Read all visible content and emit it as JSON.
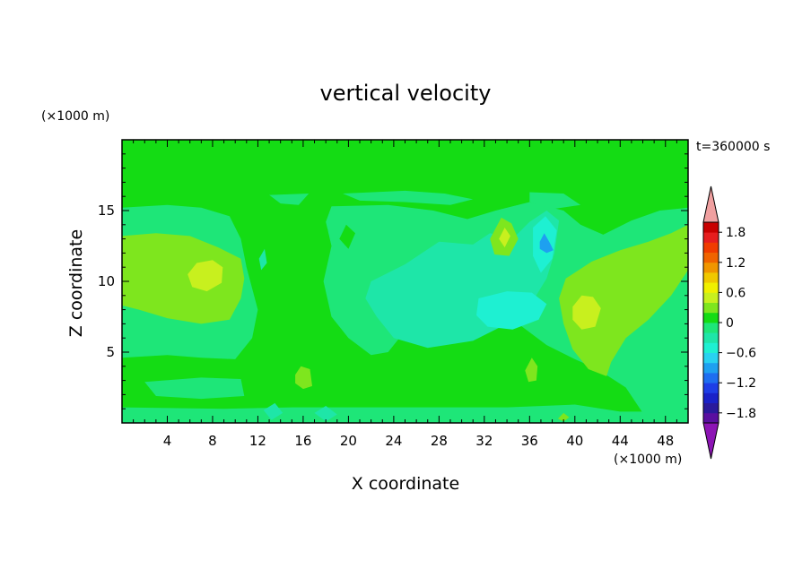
{
  "chart_data": {
    "type": "heatmap",
    "title": "vertical velocity",
    "time_label": "t=360000 s",
    "xlabel": "X coordinate",
    "ylabel": "Z coordinate",
    "x_unit": "(×1000 m)",
    "z_unit": "(×1000 m)",
    "xlim": [
      0,
      50
    ],
    "ylim": [
      0,
      20
    ],
    "x_ticks": [
      4,
      8,
      12,
      16,
      20,
      24,
      28,
      32,
      36,
      40,
      44,
      48
    ],
    "y_ticks": [
      5,
      10,
      15
    ],
    "colorbar": {
      "levels": [
        -2.0,
        -1.8,
        -1.6,
        -1.4,
        -1.2,
        -1.0,
        -0.8,
        -0.6,
        -0.4,
        -0.2,
        0,
        0.2,
        0.4,
        0.6,
        0.8,
        1.0,
        1.2,
        1.4,
        1.6,
        1.8,
        2.0
      ],
      "tick_labels": [
        "1.8",
        "1.2",
        "0.6",
        "0",
        "−0.6",
        "−1.2",
        "−1.8"
      ],
      "tick_values": [
        1.8,
        1.2,
        0.6,
        0,
        -0.6,
        -1.2,
        -1.8
      ],
      "colors": [
        "#5a0fa0",
        "#2a1a9c",
        "#1a22c8",
        "#1e3ee6",
        "#1e6ef0",
        "#1ea0f0",
        "#28d2f0",
        "#1ef0d2",
        "#1ee6a8",
        "#1ee678",
        "#14dc14",
        "#7ee61e",
        "#c8f01e",
        "#f0f000",
        "#f0c800",
        "#f09600",
        "#f06400",
        "#f03c00",
        "#e61e1e",
        "#c80000"
      ],
      "over_color": "#f0a0a0",
      "under_color": "#8c14b4"
    },
    "regions": [
      {
        "value": 0.1,
        "points": [
          [
            0,
            0
          ],
          [
            50,
            0
          ],
          [
            50,
            20
          ],
          [
            0,
            20
          ]
        ]
      },
      {
        "value": -0.1,
        "points": [
          [
            0,
            15.2
          ],
          [
            4,
            15.4
          ],
          [
            7,
            15.2
          ],
          [
            9.5,
            14.6
          ],
          [
            10.5,
            13
          ],
          [
            11,
            11
          ],
          [
            12,
            8
          ],
          [
            11.5,
            6
          ],
          [
            10,
            4.5
          ],
          [
            7,
            4.6
          ],
          [
            4,
            4.8
          ],
          [
            0,
            4.6
          ]
        ]
      },
      {
        "value": -0.1,
        "points": [
          [
            13,
            16.1
          ],
          [
            16.5,
            16.2
          ],
          [
            15.6,
            15.4
          ],
          [
            14,
            15.5
          ]
        ]
      },
      {
        "value": -0.1,
        "points": [
          [
            18.5,
            15.3
          ],
          [
            23.5,
            15.4
          ],
          [
            27.5,
            15
          ],
          [
            30.5,
            14.4
          ],
          [
            33,
            15
          ],
          [
            36,
            15.6
          ],
          [
            39,
            15
          ],
          [
            40.5,
            14
          ],
          [
            42.5,
            13.3
          ],
          [
            45,
            14.3
          ],
          [
            47.5,
            15
          ],
          [
            50,
            15.2
          ],
          [
            50,
            0.5
          ],
          [
            46,
            0.7
          ],
          [
            44.5,
            2.5
          ],
          [
            42,
            3.8
          ],
          [
            40,
            4.5
          ],
          [
            37.5,
            5.5
          ],
          [
            35,
            7
          ],
          [
            32,
            8.5
          ],
          [
            28,
            7.5
          ],
          [
            25,
            6.5
          ],
          [
            23.5,
            5
          ],
          [
            22,
            4.8
          ],
          [
            20,
            6
          ],
          [
            18.5,
            7.5
          ],
          [
            17.8,
            10
          ],
          [
            18.5,
            12.5
          ],
          [
            18,
            14.2
          ]
        ]
      },
      {
        "value": -0.1,
        "points": [
          [
            19.5,
            16.2
          ],
          [
            25,
            16.4
          ],
          [
            28.5,
            16.2
          ],
          [
            31,
            15.8
          ],
          [
            29,
            15.4
          ],
          [
            25,
            15.6
          ],
          [
            21,
            15.7
          ]
        ]
      },
      {
        "value": -0.1,
        "points": [
          [
            36,
            16.3
          ],
          [
            39,
            16.2
          ],
          [
            40.5,
            15.4
          ],
          [
            38,
            15.1
          ],
          [
            36,
            15.6
          ]
        ]
      },
      {
        "value": 0.1,
        "points": [
          [
            20,
            12.3
          ],
          [
            20.6,
            13.4
          ],
          [
            19.8,
            14
          ],
          [
            19.2,
            13
          ]
        ]
      },
      {
        "value": 0.1,
        "points": [
          [
            17.5,
            13
          ],
          [
            18.2,
            13.6
          ],
          [
            17.6,
            14.5
          ],
          [
            16.8,
            13.8
          ]
        ]
      },
      {
        "value": -0.3,
        "points": [
          [
            12.3,
            10.8
          ],
          [
            12.8,
            11.3
          ],
          [
            12.6,
            12.3
          ],
          [
            12.1,
            11.6
          ]
        ]
      },
      {
        "value": -0.3,
        "points": [
          [
            22,
            10
          ],
          [
            25,
            11.2
          ],
          [
            28,
            12.8
          ],
          [
            31,
            12.6
          ],
          [
            32.5,
            13.4
          ],
          [
            34.5,
            13
          ],
          [
            36,
            14.2
          ],
          [
            37.5,
            15
          ],
          [
            38.6,
            14.3
          ],
          [
            38.2,
            12
          ],
          [
            37.5,
            10.2
          ],
          [
            36.2,
            8.5
          ],
          [
            34,
            7
          ],
          [
            31,
            5.8
          ],
          [
            27,
            5.3
          ],
          [
            24,
            6
          ],
          [
            22.5,
            7.5
          ],
          [
            21.5,
            8.8
          ]
        ]
      },
      {
        "value": -0.5,
        "points": [
          [
            31.5,
            8.8
          ],
          [
            34,
            9.3
          ],
          [
            36.2,
            9.2
          ],
          [
            37.5,
            8.4
          ],
          [
            36.8,
            7.3
          ],
          [
            34.5,
            6.6
          ],
          [
            32.3,
            6.8
          ],
          [
            31.3,
            7.6
          ]
        ]
      },
      {
        "value": -0.5,
        "points": [
          [
            36.3,
            13.8
          ],
          [
            37.4,
            14.6
          ],
          [
            38.4,
            13.6
          ],
          [
            38,
            11.6
          ],
          [
            37,
            10.6
          ],
          [
            36.3,
            11.8
          ]
        ]
      },
      {
        "value": -0.9,
        "points": [
          [
            36.9,
            12.8
          ],
          [
            37.3,
            13.4
          ],
          [
            37.8,
            12.7
          ],
          [
            38.1,
            12.2
          ],
          [
            37.5,
            12
          ],
          [
            36.9,
            12.3
          ]
        ]
      },
      {
        "value": 0.3,
        "points": [
          [
            0,
            13.2
          ],
          [
            3,
            13.4
          ],
          [
            6,
            13.2
          ],
          [
            8.5,
            12.4
          ],
          [
            10.5,
            11.6
          ],
          [
            10.8,
            10.2
          ],
          [
            10.5,
            8.8
          ],
          [
            9.5,
            7.3
          ],
          [
            7,
            7
          ],
          [
            4,
            7.4
          ],
          [
            1.5,
            8
          ],
          [
            0,
            8.3
          ]
        ]
      },
      {
        "value": 0.5,
        "points": [
          [
            5.8,
            10.5
          ],
          [
            6.6,
            11.3
          ],
          [
            8,
            11.5
          ],
          [
            8.9,
            11
          ],
          [
            8.8,
            9.9
          ],
          [
            7.5,
            9.3
          ],
          [
            6.2,
            9.6
          ]
        ]
      },
      {
        "value": 0.3,
        "points": [
          [
            39.2,
            10.2
          ],
          [
            41.5,
            11.4
          ],
          [
            44,
            12.2
          ],
          [
            46.5,
            12.8
          ],
          [
            48.5,
            13.4
          ],
          [
            50,
            14
          ],
          [
            50,
            10.8
          ],
          [
            48.5,
            9
          ],
          [
            46.5,
            7.3
          ],
          [
            44.5,
            6
          ],
          [
            43.2,
            4.3
          ],
          [
            42.8,
            3.3
          ],
          [
            41.2,
            3.8
          ],
          [
            39.8,
            5.2
          ],
          [
            39,
            7
          ],
          [
            38.6,
            8.8
          ]
        ]
      },
      {
        "value": 0.5,
        "points": [
          [
            39.8,
            8.2
          ],
          [
            40.6,
            9
          ],
          [
            41.6,
            8.9
          ],
          [
            42.3,
            8.1
          ],
          [
            41.8,
            6.8
          ],
          [
            40.6,
            6.6
          ],
          [
            39.8,
            7.3
          ]
        ]
      },
      {
        "value": 0.3,
        "points": [
          [
            32.5,
            13
          ],
          [
            33.5,
            14.5
          ],
          [
            34.4,
            14.1
          ],
          [
            35,
            13
          ],
          [
            34.2,
            11.8
          ],
          [
            32.9,
            11.9
          ]
        ]
      },
      {
        "value": 0.5,
        "points": [
          [
            33.3,
            13
          ],
          [
            33.8,
            13.8
          ],
          [
            34.3,
            13.2
          ],
          [
            33.8,
            12.4
          ]
        ]
      },
      {
        "value": 0.3,
        "points": [
          [
            15.3,
            3.4
          ],
          [
            15.8,
            4
          ],
          [
            16.6,
            3.8
          ],
          [
            16.8,
            2.6
          ],
          [
            16,
            2.4
          ],
          [
            15.3,
            2.8
          ]
        ]
      },
      {
        "value": 0.3,
        "points": [
          [
            35.6,
            3.7
          ],
          [
            36.2,
            4.6
          ],
          [
            36.7,
            4
          ],
          [
            36.6,
            3
          ],
          [
            35.9,
            2.9
          ]
        ]
      },
      {
        "value": -0.1,
        "points": [
          [
            2,
            2.9
          ],
          [
            7,
            3.2
          ],
          [
            10.5,
            3.1
          ],
          [
            10.8,
            1.9
          ],
          [
            7,
            1.7
          ],
          [
            3,
            1.9
          ]
        ]
      },
      {
        "value": -0.1,
        "points": [
          [
            0,
            1.1
          ],
          [
            9,
            1
          ],
          [
            15,
            1.1
          ],
          [
            22,
            1.1
          ],
          [
            28,
            1.1
          ],
          [
            34,
            1.1
          ],
          [
            40,
            1.3
          ],
          [
            44,
            0.8
          ],
          [
            50,
            0.8
          ],
          [
            50,
            0
          ],
          [
            0,
            0
          ]
        ]
      },
      {
        "value": -0.3,
        "points": [
          [
            17,
            0.7
          ],
          [
            18,
            1.2
          ],
          [
            19,
            0.6
          ],
          [
            18,
            0.1
          ]
        ]
      },
      {
        "value": -0.3,
        "points": [
          [
            12.5,
            0.9
          ],
          [
            13.5,
            1.4
          ],
          [
            14.2,
            0.7
          ],
          [
            13.2,
            0.2
          ]
        ]
      },
      {
        "value": 0.3,
        "points": [
          [
            38.5,
            0.3
          ],
          [
            39,
            0.7
          ],
          [
            39.5,
            0.4
          ],
          [
            39,
            0.1
          ]
        ]
      }
    ]
  }
}
